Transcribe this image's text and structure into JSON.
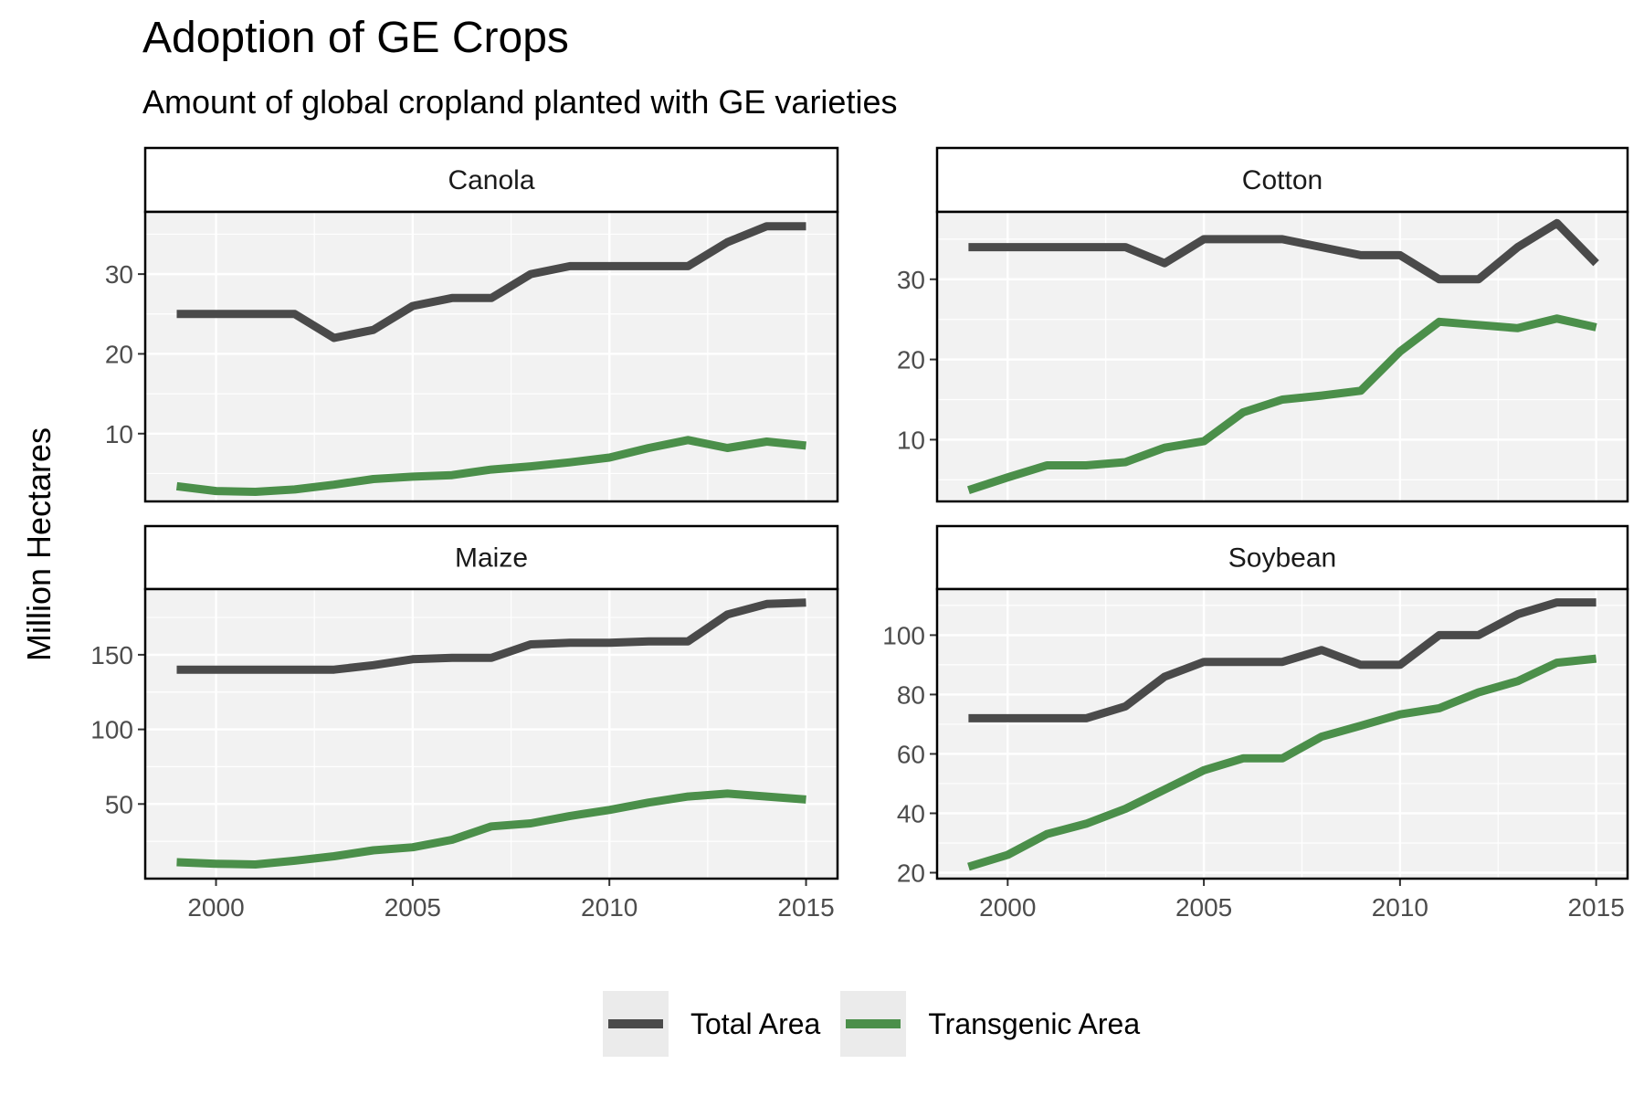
{
  "title": "Adoption of GE Crops",
  "subtitle": "Amount of global cropland planted with GE varieties",
  "ylabel": "Million Hectares",
  "legend": [
    {
      "label": "Total Area",
      "color": "#4a4a4a"
    },
    {
      "label": "Transgenic Area",
      "color": "#4b8f4a"
    }
  ],
  "chart_data": {
    "type": "line",
    "title": "Adoption of GE Crops",
    "subtitle": "Amount of global cropland planted with GE varieties",
    "xlabel": "",
    "ylabel": "Million Hectares",
    "x": [
      1999,
      2000,
      2001,
      2002,
      2003,
      2004,
      2005,
      2006,
      2007,
      2008,
      2009,
      2010,
      2011,
      2012,
      2013,
      2014,
      2015
    ],
    "xlim": [
      1998.2,
      2015.8
    ],
    "xticks": [
      2000,
      2005,
      2010,
      2015
    ],
    "legend_position": "bottom",
    "grid": true,
    "panels": [
      {
        "name": "Canola",
        "ylim": [
          1.5,
          37.8
        ],
        "yticks": [
          10,
          20,
          30
        ],
        "series": [
          {
            "name": "Total Area",
            "values": [
              25,
              25,
              25,
              25,
              22,
              23,
              26,
              27,
              27,
              30,
              31,
              31,
              31,
              31,
              34,
              36,
              36
            ]
          },
          {
            "name": "Transgenic Area",
            "values": [
              3.4,
              2.8,
              2.7,
              3.0,
              3.6,
              4.3,
              4.6,
              4.8,
              5.5,
              5.9,
              6.4,
              7.0,
              8.2,
              9.2,
              8.2,
              9.0,
              8.5
            ]
          }
        ]
      },
      {
        "name": "Cotton",
        "ylim": [
          2.3,
          38.4
        ],
        "yticks": [
          10,
          20,
          30
        ],
        "series": [
          {
            "name": "Total Area",
            "values": [
              34,
              34,
              34,
              34,
              34,
              32,
              35,
              35,
              35,
              34,
              33,
              33,
              30,
              30,
              34,
              37,
              32
            ]
          },
          {
            "name": "Transgenic Area",
            "values": [
              3.7,
              5.3,
              6.8,
              6.8,
              7.2,
              9.0,
              9.8,
              13.4,
              15.0,
              15.5,
              16.1,
              21.0,
              24.7,
              24.3,
              23.9,
              25.1,
              24.0
            ]
          }
        ]
      },
      {
        "name": "Maize",
        "ylim": [
          0,
          194
        ],
        "yticks": [
          50,
          100,
          150
        ],
        "series": [
          {
            "name": "Total Area",
            "values": [
              140,
              140,
              140,
              140,
              140,
              143,
              147,
              148,
              148,
              157,
              158,
              158,
              159,
              159,
              177,
              184,
              185
            ]
          },
          {
            "name": "Transgenic Area",
            "values": [
              11,
              10,
              9.5,
              12,
              15,
              19,
              21,
              26,
              35,
              37,
              42,
              46,
              51,
              55,
              57,
              55,
              53
            ]
          }
        ]
      },
      {
        "name": "Soybean",
        "ylim": [
          18,
          115.5
        ],
        "yticks": [
          20,
          40,
          60,
          80,
          100
        ],
        "series": [
          {
            "name": "Total Area",
            "values": [
              72,
              72,
              72,
              72,
              76,
              86,
              91,
              91,
              91,
              95,
              90,
              90,
              100,
              100,
              107,
              111,
              111
            ]
          },
          {
            "name": "Transgenic Area",
            "values": [
              22,
              26,
              33,
              36.5,
              41.5,
              48,
              54.5,
              58.5,
              58.5,
              65.8,
              69.5,
              73.3,
              75.4,
              80.7,
              84.5,
              90.7,
              92.1
            ]
          }
        ]
      }
    ]
  }
}
